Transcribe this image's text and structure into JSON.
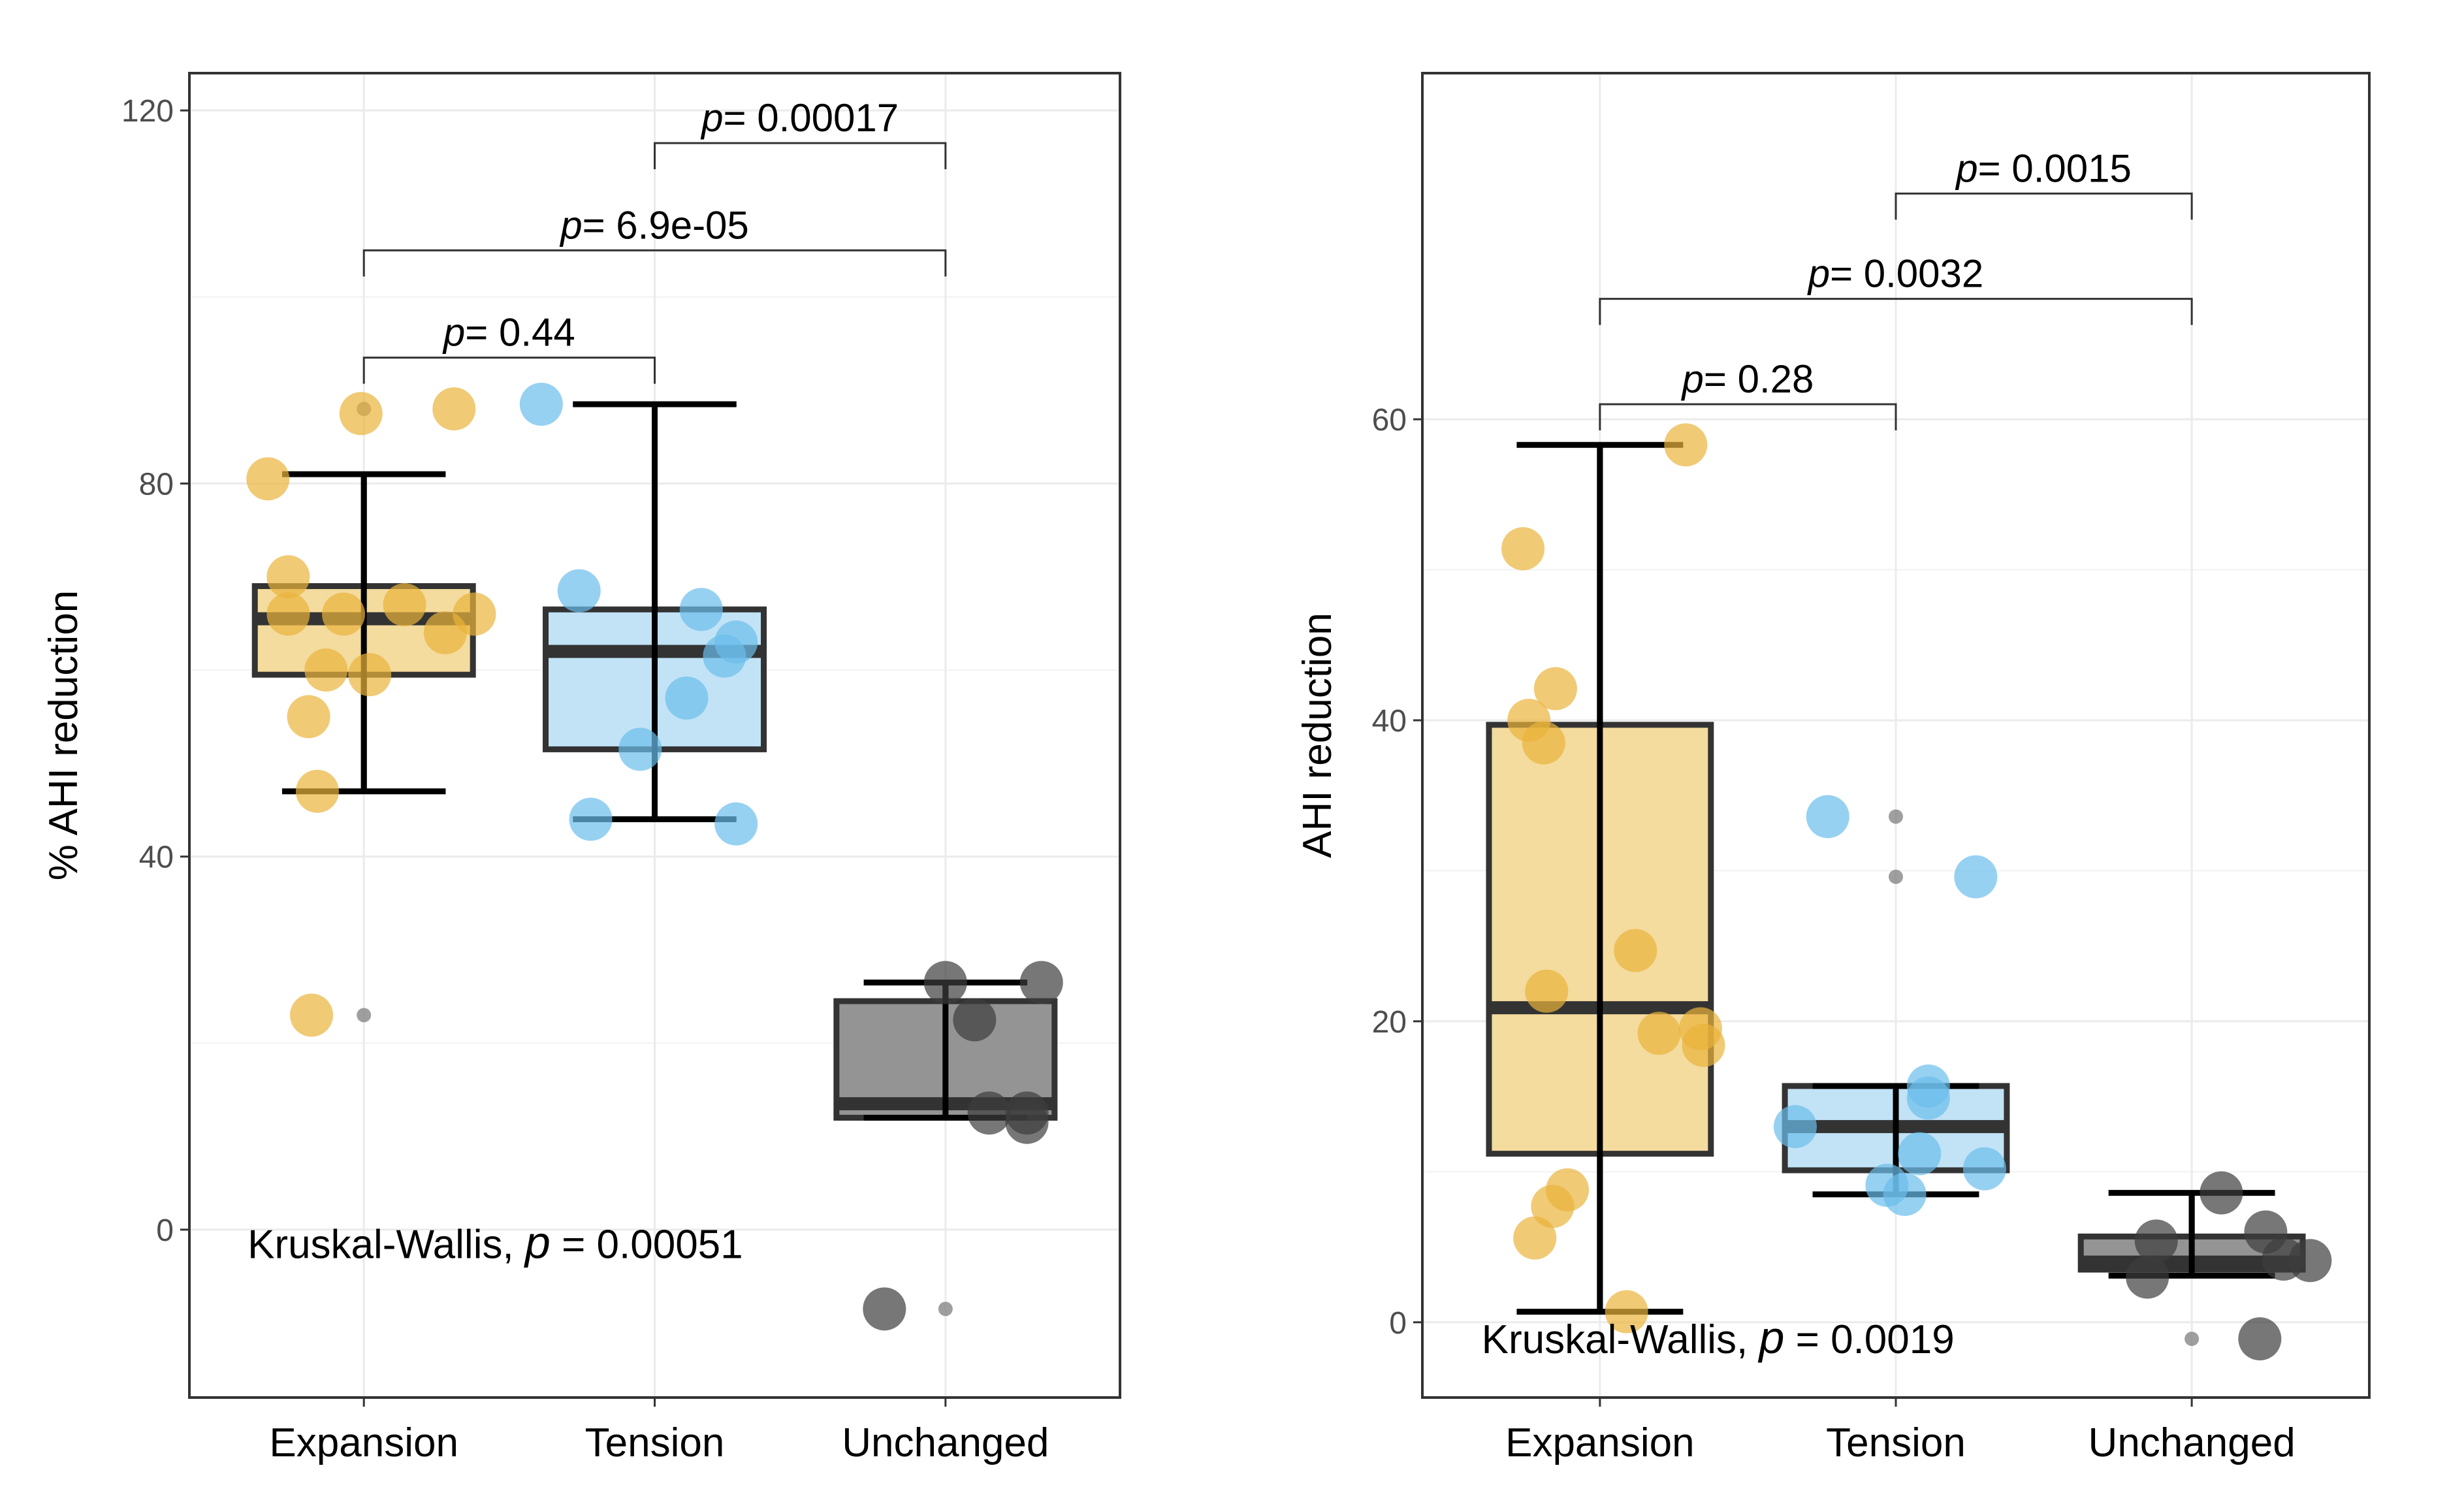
{
  "colors": {
    "Expansion": "#E9B43A",
    "Tension": "#6BBDEB",
    "Unchanged": "#3d3d3d",
    "box_fill_Expansion": "#F3D999",
    "box_fill_Tension": "#BFE2F6",
    "box_fill_Unchanged": "#8e8e8e",
    "grid": "#ebebeb",
    "panel_border": "#333333"
  },
  "chart_data": [
    {
      "type": "box",
      "ylabel": "% AHI reduction",
      "xlabel": "",
      "categories": [
        "Expansion",
        "Tension",
        "Unchanged"
      ],
      "ylim": [
        -18,
        124
      ],
      "yticks": [
        0,
        40,
        80,
        120
      ],
      "tick_labels": [
        "0",
        "40",
        "80",
        "120"
      ],
      "boxes": [
        {
          "group": "Expansion",
          "q1": 59.5,
          "median": 65.5,
          "q3": 69,
          "whisker_low": 47,
          "whisker_high": 81
        },
        {
          "group": "Tension",
          "q1": 51.5,
          "median": 62,
          "q3": 66.5,
          "whisker_low": 44,
          "whisker_high": 88.5
        },
        {
          "group": "Unchanged",
          "q1": 12,
          "median": 13.5,
          "q3": 24.5,
          "whisker_low": 12,
          "whisker_high": 26.5
        }
      ],
      "outliers": [
        {
          "group": "Expansion",
          "y": 88
        },
        {
          "group": "Expansion",
          "y": 23
        },
        {
          "group": "Unchanged",
          "y": -8.5
        }
      ],
      "points": [
        {
          "group": "Expansion",
          "x": 0.67,
          "y": 80.5
        },
        {
          "group": "Expansion",
          "x": 0.99,
          "y": 87.5
        },
        {
          "group": "Expansion",
          "x": 1.31,
          "y": 88
        },
        {
          "group": "Expansion",
          "x": 0.74,
          "y": 70
        },
        {
          "group": "Expansion",
          "x": 0.74,
          "y": 66
        },
        {
          "group": "Expansion",
          "x": 0.93,
          "y": 66
        },
        {
          "group": "Expansion",
          "x": 1.14,
          "y": 67
        },
        {
          "group": "Expansion",
          "x": 1.38,
          "y": 66
        },
        {
          "group": "Expansion",
          "x": 1.28,
          "y": 64
        },
        {
          "group": "Expansion",
          "x": 0.87,
          "y": 60
        },
        {
          "group": "Expansion",
          "x": 1.02,
          "y": 59.5
        },
        {
          "group": "Expansion",
          "x": 0.81,
          "y": 55
        },
        {
          "group": "Expansion",
          "x": 0.84,
          "y": 47
        },
        {
          "group": "Expansion",
          "x": 0.82,
          "y": 23
        },
        {
          "group": "Tension",
          "x": 1.61,
          "y": 88.5
        },
        {
          "group": "Tension",
          "x": 1.74,
          "y": 68.5
        },
        {
          "group": "Tension",
          "x": 2.16,
          "y": 66.5
        },
        {
          "group": "Tension",
          "x": 2.28,
          "y": 63
        },
        {
          "group": "Tension",
          "x": 2.24,
          "y": 61.5
        },
        {
          "group": "Tension",
          "x": 2.11,
          "y": 57
        },
        {
          "group": "Tension",
          "x": 1.95,
          "y": 51.5
        },
        {
          "group": "Tension",
          "x": 1.78,
          "y": 44
        },
        {
          "group": "Tension",
          "x": 2.28,
          "y": 43.5
        },
        {
          "group": "Unchanged",
          "x": 3.0,
          "y": 26.5
        },
        {
          "group": "Unchanged",
          "x": 3.33,
          "y": 26.5
        },
        {
          "group": "Unchanged",
          "x": 3.1,
          "y": 22.5
        },
        {
          "group": "Unchanged",
          "x": 3.15,
          "y": 12.5
        },
        {
          "group": "Unchanged",
          "x": 3.28,
          "y": 12.5
        },
        {
          "group": "Unchanged",
          "x": 3.28,
          "y": 11.5
        },
        {
          "group": "Unchanged",
          "x": 2.79,
          "y": -8.5
        }
      ],
      "comparisons": [
        {
          "from": "Expansion",
          "to": "Tension",
          "p_label": "p",
          "p_value": "= 0.44",
          "y": 93.5
        },
        {
          "from": "Expansion",
          "to": "Unchanged",
          "p_label": "p",
          "p_value": "= 6.9e-05",
          "y": 105
        },
        {
          "from": "Tension",
          "to": "Unchanged",
          "p_label": "p",
          "p_value": "= 0.00017",
          "y": 116.5
        }
      ],
      "kruskal": {
        "text": "Kruskal-Wallis, ",
        "p_label": "p",
        "p_value": " = 0.00051",
        "x": 0.6,
        "y": -1.5
      }
    },
    {
      "type": "box",
      "ylabel": "AHI reduction",
      "xlabel": "",
      "categories": [
        "Expansion",
        "Tension",
        "Unchanged"
      ],
      "ylim": [
        -5,
        83
      ],
      "yticks": [
        0,
        20,
        40,
        60
      ],
      "tick_labels": [
        "0",
        "20",
        "40",
        "60"
      ],
      "boxes": [
        {
          "group": "Expansion",
          "q1": 11.2,
          "median": 20.9,
          "q3": 39.7,
          "whisker_low": 0.7,
          "whisker_high": 58.3
        },
        {
          "group": "Tension",
          "q1": 10.1,
          "median": 13,
          "q3": 15.7,
          "whisker_low": 8.5,
          "whisker_high": 15.7
        },
        {
          "group": "Unchanged",
          "q1": 3.5,
          "median": 4,
          "q3": 5.7,
          "whisker_low": 3.1,
          "whisker_high": 8.6
        }
      ],
      "outliers": [
        {
          "group": "Tension",
          "y": 33.6
        },
        {
          "group": "Tension",
          "y": 29.6
        },
        {
          "group": "Unchanged",
          "y": -1.1
        }
      ],
      "points": [
        {
          "group": "Expansion",
          "x": 1.29,
          "y": 58.3
        },
        {
          "group": "Expansion",
          "x": 0.74,
          "y": 51.4
        },
        {
          "group": "Expansion",
          "x": 0.85,
          "y": 42.1
        },
        {
          "group": "Expansion",
          "x": 0.76,
          "y": 40
        },
        {
          "group": "Expansion",
          "x": 0.81,
          "y": 38.5
        },
        {
          "group": "Expansion",
          "x": 1.12,
          "y": 24.7
        },
        {
          "group": "Expansion",
          "x": 0.82,
          "y": 22
        },
        {
          "group": "Expansion",
          "x": 1.2,
          "y": 19.2
        },
        {
          "group": "Expansion",
          "x": 1.34,
          "y": 19.5
        },
        {
          "group": "Expansion",
          "x": 1.35,
          "y": 18.4
        },
        {
          "group": "Expansion",
          "x": 0.89,
          "y": 8.8
        },
        {
          "group": "Expansion",
          "x": 0.84,
          "y": 7.7
        },
        {
          "group": "Expansion",
          "x": 0.78,
          "y": 5.6
        },
        {
          "group": "Expansion",
          "x": 1.09,
          "y": 0.7
        },
        {
          "group": "Tension",
          "x": 1.77,
          "y": 33.6
        },
        {
          "group": "Tension",
          "x": 2.27,
          "y": 29.6
        },
        {
          "group": "Tension",
          "x": 1.66,
          "y": 13
        },
        {
          "group": "Tension",
          "x": 2.11,
          "y": 15.7
        },
        {
          "group": "Tension",
          "x": 2.11,
          "y": 14.9
        },
        {
          "group": "Tension",
          "x": 2.08,
          "y": 11.2
        },
        {
          "group": "Tension",
          "x": 2.3,
          "y": 10.2
        },
        {
          "group": "Tension",
          "x": 1.97,
          "y": 9.1
        },
        {
          "group": "Tension",
          "x": 2.03,
          "y": 8.5
        },
        {
          "group": "Unchanged",
          "x": 3.1,
          "y": 8.6
        },
        {
          "group": "Unchanged",
          "x": 3.25,
          "y": 6
        },
        {
          "group": "Unchanged",
          "x": 2.88,
          "y": 5.4
        },
        {
          "group": "Unchanged",
          "x": 3.31,
          "y": 4.2
        },
        {
          "group": "Unchanged",
          "x": 3.4,
          "y": 4.1
        },
        {
          "group": "Unchanged",
          "x": 2.85,
          "y": 3
        },
        {
          "group": "Unchanged",
          "x": 3.23,
          "y": -1.1
        }
      ],
      "comparisons": [
        {
          "from": "Expansion",
          "to": "Tension",
          "p_label": "p",
          "p_value": "= 0.28",
          "y": 61
        },
        {
          "from": "Expansion",
          "to": "Unchanged",
          "p_label": "p",
          "p_value": "= 0.0032",
          "y": 68
        },
        {
          "from": "Tension",
          "to": "Unchanged",
          "p_label": "p",
          "p_value": "= 0.0015",
          "y": 75
        }
      ],
      "kruskal": {
        "text": "Kruskal-Wallis, ",
        "p_label": "p",
        "p_value": " = 0.0019",
        "x": 0.6,
        "y": -1.1
      }
    }
  ]
}
